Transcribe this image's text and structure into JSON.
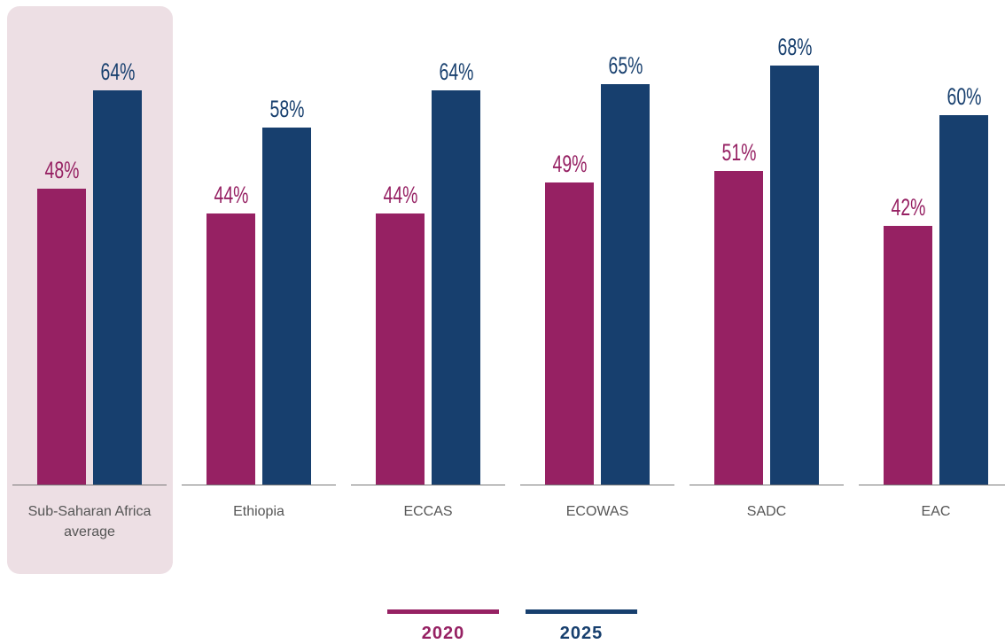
{
  "chart_data": {
    "type": "bar",
    "categories": [
      "Sub-Saharan Africa average",
      "Ethiopia",
      "ECCAS",
      "ECOWAS",
      "SADC",
      "EAC"
    ],
    "series": [
      {
        "name": "2020",
        "color": "#962163",
        "values": [
          48,
          44,
          44,
          49,
          51,
          42
        ],
        "value_labels": [
          "48%",
          "44%",
          "44%",
          "49%",
          "51%",
          "42%"
        ]
      },
      {
        "name": "2025",
        "color": "#173f6e",
        "values": [
          64,
          58,
          64,
          65,
          68,
          60
        ],
        "value_labels": [
          "64%",
          "58%",
          "64%",
          "65%",
          "68%",
          "60%"
        ]
      }
    ]
  }
}
